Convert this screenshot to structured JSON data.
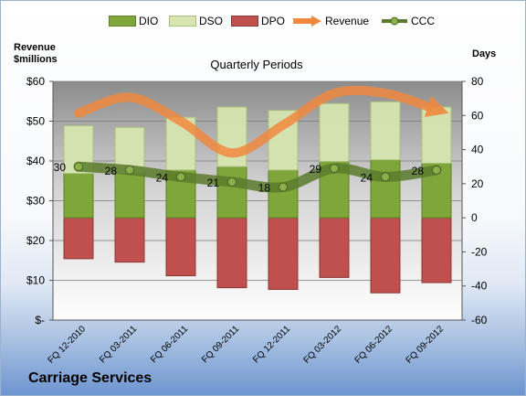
{
  "company_label": "Carriage Services",
  "colors": {
    "dio": "#7fa63a",
    "dso": "#d7e6b0",
    "dpo": "#c0504d",
    "revenue": "#f0883e",
    "ccc": "#5b7a2b"
  },
  "chart_data": {
    "type": "bar",
    "title": "Quarterly Periods",
    "left_axis_title_line1": "Revenue",
    "left_axis_title_line2": "$millions",
    "right_axis_title": "Days",
    "left_ylim": [
      0,
      60
    ],
    "right_ylim": [
      -60,
      80
    ],
    "left_ticks": [
      "$-",
      "$10",
      "$20",
      "$30",
      "$40",
      "$50",
      "$60"
    ],
    "left_tick_values": [
      0,
      10,
      20,
      30,
      40,
      50,
      60
    ],
    "right_ticks": [
      "-60",
      "-40",
      "-20",
      "0",
      "20",
      "40",
      "60",
      "80"
    ],
    "right_tick_values": [
      -60,
      -40,
      -20,
      0,
      20,
      40,
      60,
      80
    ],
    "grid": true,
    "legend_position": "top",
    "categories": [
      "FQ 12-2010",
      "FQ 03-2011",
      "FQ 06-2011",
      "FQ 09-2011",
      "FQ 12-2011",
      "FQ 03-2012",
      "FQ 06-2012",
      "FQ 09-2012"
    ],
    "series": [
      {
        "name": "DIO",
        "axis": "right",
        "kind": "bar",
        "values": [
          26,
          26,
          28,
          30,
          28,
          33,
          34,
          32
        ]
      },
      {
        "name": "DSO",
        "axis": "right",
        "kind": "bar",
        "values": [
          28,
          27,
          31,
          35,
          35,
          34,
          34,
          33
        ]
      },
      {
        "name": "DPO",
        "axis": "right",
        "kind": "bar",
        "values": [
          -24,
          -26,
          -34,
          -41,
          -42,
          -35,
          -44,
          -38
        ]
      },
      {
        "name": "Revenue",
        "axis": "left",
        "kind": "line",
        "values": [
          52,
          56,
          50,
          42,
          49,
          57,
          57,
          53
        ]
      },
      {
        "name": "CCC",
        "axis": "right",
        "kind": "line",
        "values": [
          30,
          28,
          24,
          21,
          18,
          29,
          24,
          28
        ],
        "data_labels": [
          "30",
          "28",
          "24",
          "21",
          "18",
          "29",
          "24",
          "28"
        ]
      }
    ]
  }
}
